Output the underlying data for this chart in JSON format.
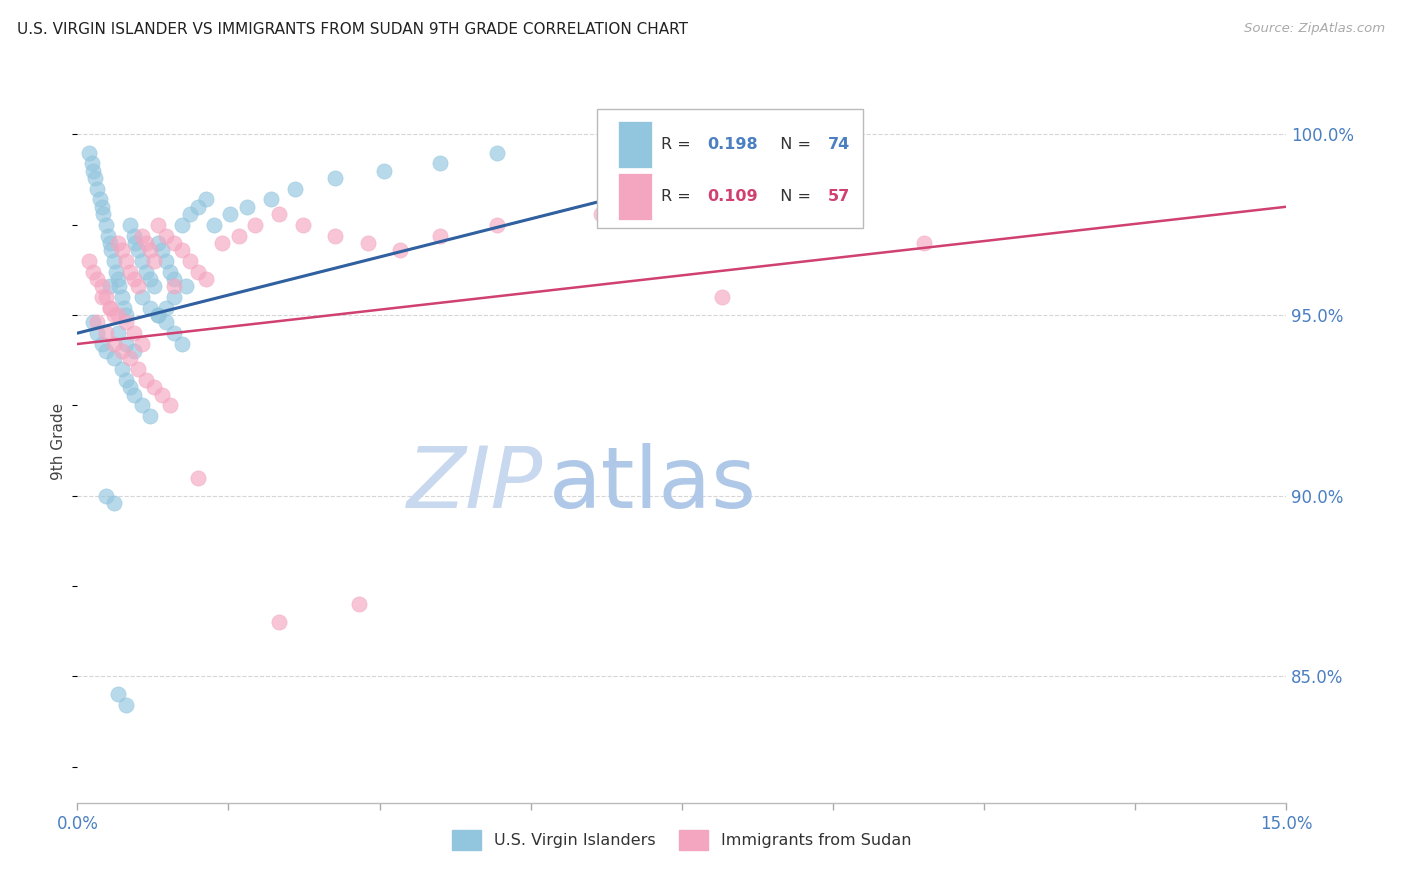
{
  "title": "U.S. VIRGIN ISLANDER VS IMMIGRANTS FROM SUDAN 9TH GRADE CORRELATION CHART",
  "source": "Source: ZipAtlas.com",
  "ylabel": "9th Grade",
  "xlim": [
    0.0,
    15.0
  ],
  "ylim": [
    81.5,
    101.5
  ],
  "yticks": [
    85.0,
    90.0,
    95.0,
    100.0
  ],
  "legend_r1": "0.198",
  "legend_n1": "74",
  "legend_r2": "0.109",
  "legend_n2": "57",
  "blue_color": "#92c5de",
  "pink_color": "#f4a6c0",
  "blue_line_color": "#3060a0",
  "pink_line_color": "#d04070",
  "watermark_zip_color": "#c8d8ee",
  "watermark_atlas_color": "#b0c8e8",
  "blue_trend_x0": 0.0,
  "blue_trend_y0": 94.5,
  "blue_trend_x1": 8.0,
  "blue_trend_y1": 99.0,
  "pink_trend_x0": 0.0,
  "pink_trend_y0": 94.2,
  "pink_trend_x1": 15.0,
  "pink_trend_y1": 98.0,
  "blue_x": [
    0.15,
    0.18,
    0.2,
    0.22,
    0.25,
    0.28,
    0.3,
    0.32,
    0.35,
    0.38,
    0.4,
    0.42,
    0.45,
    0.48,
    0.5,
    0.52,
    0.55,
    0.58,
    0.6,
    0.65,
    0.7,
    0.72,
    0.75,
    0.8,
    0.85,
    0.9,
    0.95,
    1.0,
    1.05,
    1.1,
    1.15,
    1.2,
    1.3,
    1.4,
    1.5,
    1.6,
    1.7,
    1.9,
    2.1,
    2.4,
    2.7,
    3.2,
    3.8,
    4.5,
    5.2,
    0.2,
    0.25,
    0.3,
    0.35,
    0.45,
    0.55,
    0.6,
    0.65,
    0.7,
    0.8,
    0.9,
    1.0,
    1.1,
    1.2,
    1.35,
    0.5,
    0.6,
    0.7,
    0.8,
    0.9,
    1.0,
    1.1,
    1.2,
    1.3,
    0.4,
    0.5,
    0.6,
    0.35,
    0.45
  ],
  "blue_y": [
    99.5,
    99.2,
    99.0,
    98.8,
    98.5,
    98.2,
    98.0,
    97.8,
    97.5,
    97.2,
    97.0,
    96.8,
    96.5,
    96.2,
    96.0,
    95.8,
    95.5,
    95.2,
    95.0,
    97.5,
    97.2,
    97.0,
    96.8,
    96.5,
    96.2,
    96.0,
    95.8,
    97.0,
    96.8,
    96.5,
    96.2,
    96.0,
    97.5,
    97.8,
    98.0,
    98.2,
    97.5,
    97.8,
    98.0,
    98.2,
    98.5,
    98.8,
    99.0,
    99.2,
    99.5,
    94.8,
    94.5,
    94.2,
    94.0,
    93.8,
    93.5,
    93.2,
    93.0,
    92.8,
    92.5,
    92.2,
    95.0,
    95.2,
    95.5,
    95.8,
    94.5,
    94.2,
    94.0,
    95.5,
    95.2,
    95.0,
    94.8,
    94.5,
    94.2,
    95.8,
    84.5,
    84.2,
    90.0,
    89.8
  ],
  "pink_x": [
    0.15,
    0.2,
    0.25,
    0.3,
    0.35,
    0.4,
    0.45,
    0.5,
    0.55,
    0.6,
    0.65,
    0.7,
    0.75,
    0.8,
    0.85,
    0.9,
    0.95,
    1.0,
    1.1,
    1.2,
    1.3,
    1.4,
    1.5,
    1.6,
    1.8,
    2.0,
    2.2,
    2.5,
    2.8,
    3.2,
    3.6,
    4.0,
    4.5,
    5.2,
    6.5,
    8.0,
    10.5,
    0.25,
    0.35,
    0.45,
    0.55,
    0.65,
    0.75,
    0.85,
    0.95,
    1.05,
    1.15,
    0.3,
    0.4,
    0.5,
    0.6,
    0.7,
    0.8,
    1.2,
    2.5,
    3.5,
    1.5
  ],
  "pink_y": [
    96.5,
    96.2,
    96.0,
    95.8,
    95.5,
    95.2,
    95.0,
    97.0,
    96.8,
    96.5,
    96.2,
    96.0,
    95.8,
    97.2,
    97.0,
    96.8,
    96.5,
    97.5,
    97.2,
    97.0,
    96.8,
    96.5,
    96.2,
    96.0,
    97.0,
    97.2,
    97.5,
    97.8,
    97.5,
    97.2,
    97.0,
    96.8,
    97.2,
    97.5,
    97.8,
    95.5,
    97.0,
    94.8,
    94.5,
    94.2,
    94.0,
    93.8,
    93.5,
    93.2,
    93.0,
    92.8,
    92.5,
    95.5,
    95.2,
    95.0,
    94.8,
    94.5,
    94.2,
    95.8,
    86.5,
    87.0,
    90.5
  ]
}
